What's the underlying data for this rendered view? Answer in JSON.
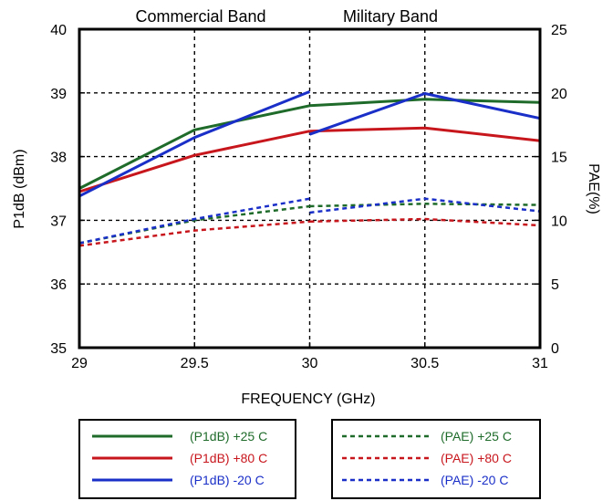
{
  "chart_data": {
    "type": "line",
    "xlabel": "FREQUENCY (GHz)",
    "ylabel": "P1dB (dBm)",
    "y2label": "PAE(%)",
    "xlim": [
      29,
      31
    ],
    "ylim": [
      35,
      40
    ],
    "y2lim": [
      0,
      25
    ],
    "x_ticks": [
      "29",
      "29.5",
      "30",
      "30.5",
      "31"
    ],
    "y_ticks": [
      "35",
      "36",
      "37",
      "38",
      "39",
      "40"
    ],
    "y2_ticks": [
      "0",
      "5",
      "10",
      "15",
      "20",
      "25"
    ],
    "grid": true,
    "annotations": [
      {
        "text": "Commercial Band",
        "x": 29.5
      },
      {
        "text": "Military Band",
        "x": 30.5
      }
    ],
    "series": [
      {
        "name": "(P1dB) +25 C",
        "axis": "left",
        "style": "solid",
        "color": "#1e6b2a",
        "segments": [
          [
            [
              29,
              37.5
            ],
            [
              29.5,
              38.42
            ],
            [
              30,
              38.8
            ]
          ],
          [
            [
              30,
              38.8
            ],
            [
              30.5,
              38.9
            ],
            [
              31,
              38.85
            ]
          ]
        ]
      },
      {
        "name": "(P1dB) +80 C",
        "axis": "left",
        "style": "solid",
        "color": "#c8161d",
        "segments": [
          [
            [
              29,
              37.45
            ],
            [
              29.5,
              38.02
            ],
            [
              30,
              38.4
            ]
          ],
          [
            [
              30,
              38.4
            ],
            [
              30.5,
              38.45
            ],
            [
              31,
              38.25
            ]
          ]
        ]
      },
      {
        "name": "(P1dB) -20 C",
        "axis": "left",
        "style": "solid",
        "color": "#1a2fc8",
        "segments": [
          [
            [
              29,
              37.38
            ],
            [
              29.5,
              38.3
            ],
            [
              30,
              39.02
            ]
          ],
          [
            [
              30,
              38.35
            ],
            [
              30.5,
              38.99
            ],
            [
              31,
              38.6
            ]
          ]
        ]
      },
      {
        "name": "(PAE) +25 C",
        "axis": "right",
        "style": "dashed",
        "color": "#1e6b2a",
        "segments": [
          [
            [
              29,
              8.2
            ],
            [
              29.5,
              10.0
            ],
            [
              30,
              11.1
            ]
          ],
          [
            [
              30,
              11.1
            ],
            [
              30.5,
              11.3
            ],
            [
              31,
              11.2
            ]
          ]
        ]
      },
      {
        "name": "(PAE) +80 C",
        "axis": "right",
        "style": "dashed",
        "color": "#c8161d",
        "segments": [
          [
            [
              29,
              8.0
            ],
            [
              29.5,
              9.2
            ],
            [
              30,
              9.9
            ]
          ],
          [
            [
              30,
              9.9
            ],
            [
              30.5,
              10.1
            ],
            [
              31,
              9.6
            ]
          ]
        ]
      },
      {
        "name": "(PAE) -20 C",
        "axis": "right",
        "style": "dashed",
        "color": "#1a2fc8",
        "segments": [
          [
            [
              29,
              8.2
            ],
            [
              29.5,
              10.1
            ],
            [
              30,
              11.7
            ]
          ],
          [
            [
              30,
              10.6
            ],
            [
              30.5,
              11.7
            ],
            [
              31,
              10.7
            ]
          ]
        ]
      }
    ],
    "legend": {
      "left": [
        "(P1dB) +25 C",
        "(P1dB) +80 C",
        "(P1dB) -20 C"
      ],
      "right": [
        "(PAE) +25 C",
        "(PAE) +80 C",
        "(PAE) -20 C"
      ]
    }
  }
}
